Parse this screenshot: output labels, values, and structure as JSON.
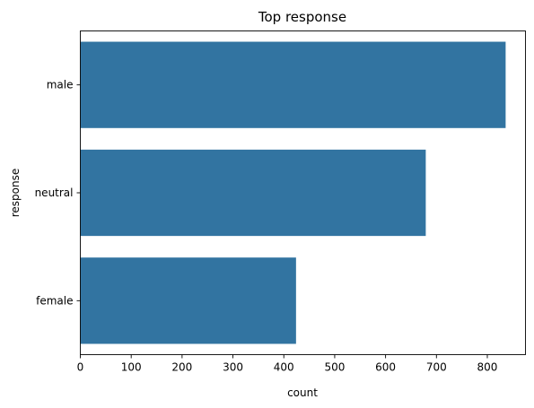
{
  "chart_data": {
    "type": "bar",
    "orientation": "horizontal",
    "title": "Top  response",
    "xlabel": "count",
    "ylabel": "response",
    "categories": [
      "male",
      "neutral",
      "female"
    ],
    "values": [
      836,
      679,
      424
    ],
    "xlim": [
      0,
      875
    ],
    "xticks": [
      0,
      100,
      200,
      300,
      400,
      500,
      600,
      700,
      800
    ],
    "grid": false,
    "legend": false,
    "bar_color": "#3274a1"
  }
}
